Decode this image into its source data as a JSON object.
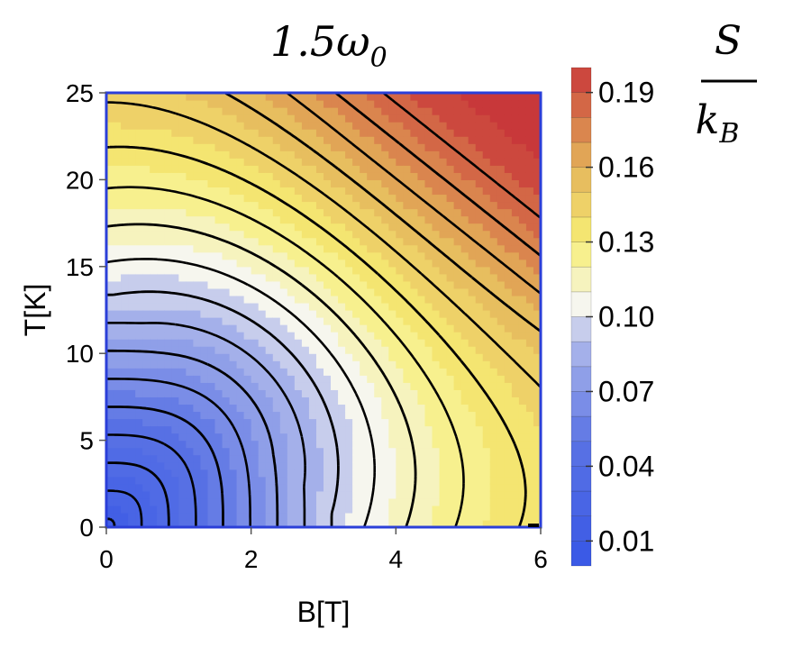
{
  "chart_data": {
    "type": "contour",
    "title": "1.5ω",
    "title_subscript": "0",
    "xlabel": "B[T]",
    "ylabel": "T[K]",
    "xlim": [
      0,
      6
    ],
    "ylim": [
      0,
      25
    ],
    "xticks": [
      "0",
      "2",
      "4",
      "6"
    ],
    "yticks": [
      "0",
      "5",
      "10",
      "15",
      "20",
      "25"
    ],
    "colorbar": {
      "label_numerator": "S",
      "label_denominator": "k",
      "label_denominator_subscript": "B",
      "ticks": [
        "0.01",
        "0.04",
        "0.07",
        "0.10",
        "0.13",
        "0.16",
        "0.19"
      ],
      "range": [
        0.0,
        0.2
      ],
      "bands": 20
    },
    "contour_levels": [
      0.015,
      0.025,
      0.035,
      0.045,
      0.055,
      0.065,
      0.075,
      0.085,
      0.095,
      0.105,
      0.115,
      0.125,
      0.135,
      0.145,
      0.155,
      0.165,
      0.175,
      0.185
    ],
    "colors": {
      "low": "#3857e6",
      "mid": "#f6f6ee",
      "high_yellow": "#f7ef72",
      "high": "#c8383a",
      "frame": "#2b3fd8"
    }
  }
}
